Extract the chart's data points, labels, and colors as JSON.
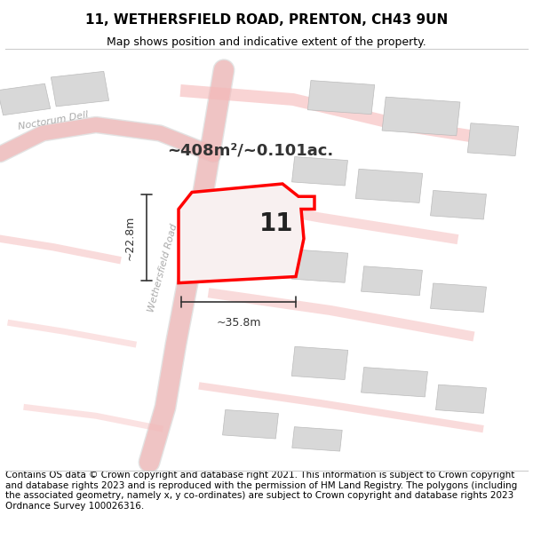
{
  "title": "11, WETHERSFIELD ROAD, PRENTON, CH43 9UN",
  "subtitle": "Map shows position and indicative extent of the property.",
  "footer": "Contains OS data © Crown copyright and database right 2021. This information is subject to Crown copyright and database rights 2023 and is reproduced with the permission of HM Land Registry. The polygons (including the associated geometry, namely x, y co-ordinates) are subject to Crown copyright and database rights 2023 Ordnance Survey 100026316.",
  "area_label": "~408m²/~0.101ac.",
  "number_label": "11",
  "dim_width": "~35.8m",
  "dim_height": "~22.8m",
  "road_label1": "Wethersfield Road",
  "road_label2": "Noctorum Dell",
  "bg_color": "#ffffff",
  "map_bg": "#f5f5f5",
  "block_color": "#d8d8d8",
  "road_color": "#f0b8b8",
  "highlight_color": "#ff0000",
  "highlight_fill": "#f5f0f0",
  "dim_color": "#333333",
  "title_fontsize": 11,
  "subtitle_fontsize": 9,
  "footer_fontsize": 7.5
}
